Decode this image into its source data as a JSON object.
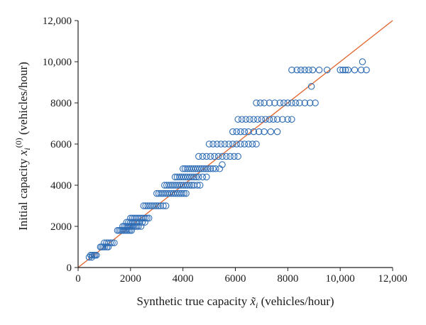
{
  "chart_data": {
    "type": "scatter",
    "xlabel": "Synthetic true capacity x̃ᵢ (vehicles/hour)",
    "ylabel": "Initial capacity xᵢ⁽⁰⁾ (vehicles/hour)",
    "xlabel_parts": {
      "pre": "Synthetic true capacity ",
      "var": "x̃",
      "sub": "i",
      "post": " (vehicles/hour)"
    },
    "ylabel_parts": {
      "pre": "Initial capacity ",
      "var": "x",
      "sub": "i",
      "sup": "(0)",
      "post": " (vehicles/hour)"
    },
    "xlim": [
      0,
      12000
    ],
    "ylim": [
      0,
      12000
    ],
    "x_ticks": [
      "0",
      "2000",
      "4000",
      "6000",
      "8000",
      "10,000",
      "12,000"
    ],
    "y_ticks": [
      "0",
      "2000",
      "4000",
      "6000",
      "8000",
      "10,000",
      "12,000"
    ],
    "grid": false,
    "reference_line": {
      "from": [
        0,
        0
      ],
      "to": [
        12000,
        12000
      ],
      "color": "#e0622a"
    },
    "marker_color": "#2f6db5",
    "groups": [
      {
        "y": 500,
        "x": [
          420,
          520
        ]
      },
      {
        "y": 600,
        "x": [
          480,
          540,
          600,
          650,
          700
        ]
      },
      {
        "y": 1000,
        "x": [
          850,
          900,
          960,
          1020,
          1100,
          1150
        ]
      },
      {
        "y": 1200,
        "x": [
          1000,
          1080,
          1150,
          1230,
          1300,
          1380
        ]
      },
      {
        "y": 1800,
        "x": [
          1500,
          1560,
          1620,
          1680,
          1740,
          1800,
          1860,
          1920,
          1980,
          2040
        ]
      },
      {
        "y": 2000,
        "x": [
          1700,
          1760,
          1820,
          1880,
          1940,
          2000,
          2060,
          2120,
          2180,
          2240,
          2300,
          2400
        ]
      },
      {
        "y": 2200,
        "x": [
          1850,
          1920,
          1990,
          2060,
          2130,
          2200,
          2270,
          2350,
          2450,
          2550
        ]
      },
      {
        "y": 2400,
        "x": [
          2000,
          2070,
          2140,
          2210,
          2280,
          2350,
          2420,
          2490,
          2560,
          2630,
          2700
        ]
      },
      {
        "y": 3000,
        "x": [
          2500,
          2580,
          2660,
          2740,
          2820,
          2900,
          2980,
          3060,
          3140,
          3250,
          3350
        ]
      },
      {
        "y": 3600,
        "x": [
          3000,
          3080,
          3160,
          3240,
          3320,
          3400,
          3480,
          3560,
          3640,
          3720,
          3800,
          3880,
          3960,
          4040,
          4120
        ]
      },
      {
        "y": 4000,
        "x": [
          3300,
          3380,
          3460,
          3540,
          3620,
          3700,
          3780,
          3860,
          3940,
          4020,
          4100,
          4180,
          4260,
          4340,
          4420,
          4550,
          4650
        ]
      },
      {
        "y": 4400,
        "x": [
          3700,
          3780,
          3860,
          3940,
          4020,
          4100,
          4180,
          4260,
          4340,
          4420,
          4500,
          4600,
          4750,
          4900
        ]
      },
      {
        "y": 4800,
        "x": [
          4000,
          4080,
          4160,
          4240,
          4320,
          4400,
          4480,
          4560,
          4640,
          4720,
          4800,
          4880,
          4960,
          5050,
          5150,
          5250,
          5400
        ]
      },
      {
        "y": 5000,
        "x": [
          5500
        ]
      },
      {
        "y": 5400,
        "x": [
          4600,
          4750,
          4900,
          5050,
          5200,
          5350,
          5500,
          5650,
          5800,
          5950,
          6100
        ]
      },
      {
        "y": 6000,
        "x": [
          5000,
          5150,
          5300,
          5450,
          5600,
          5750,
          5900,
          6050,
          6200,
          6350,
          6500,
          6650,
          6800
        ]
      },
      {
        "y": 6600,
        "x": [
          5900,
          6050,
          6200,
          6350,
          6500,
          6700,
          6900,
          7100,
          7350,
          7600
        ]
      },
      {
        "y": 7200,
        "x": [
          6100,
          6250,
          6400,
          6550,
          6700,
          6850,
          7000,
          7150,
          7300,
          7450,
          7600,
          7800,
          8000,
          8150
        ]
      },
      {
        "y": 8000,
        "x": [
          6800,
          6950,
          7100,
          7300,
          7500,
          7700,
          7850,
          8000,
          8150,
          8300,
          8450,
          8650,
          8850,
          9050
        ]
      },
      {
        "y": 8800,
        "x": [
          8900
        ]
      },
      {
        "y": 9600,
        "x": [
          8150,
          8350,
          8500,
          8650,
          8800,
          8950,
          9200,
          9500,
          10000,
          10100,
          10200,
          10300,
          10550,
          10800,
          11000
        ]
      },
      {
        "y": 10000,
        "x": [
          10850
        ]
      }
    ]
  }
}
